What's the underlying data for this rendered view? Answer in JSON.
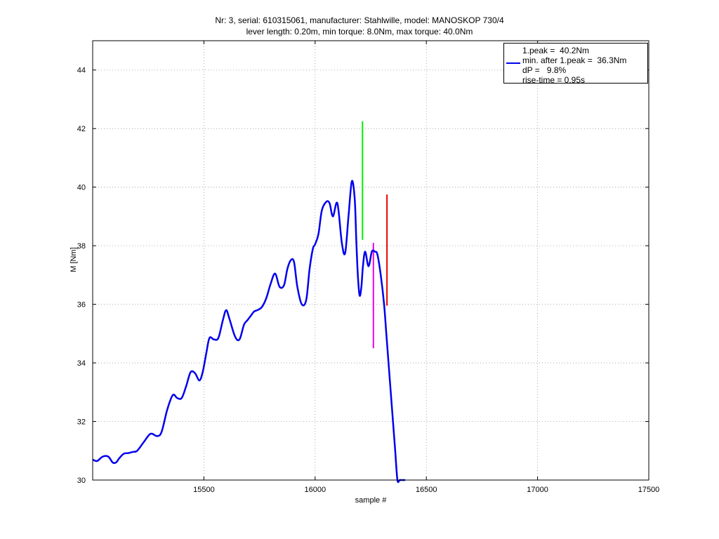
{
  "chart_data": {
    "type": "line",
    "title": "Nr: 3, serial: 610315061, manufacturer: Stahlwille, model: MANOSKOP 730/4",
    "subtitle": "lever length: 0.20m, min torque: 8.0Nm, max torque: 40.0Nm",
    "xlabel": "sample #",
    "ylabel": "M [Nm]",
    "xlim": [
      15000,
      17500
    ],
    "ylim": [
      30,
      45
    ],
    "xticks": [
      15500,
      16000,
      16500,
      17000,
      17500
    ],
    "yticks": [
      30,
      32,
      34,
      36,
      38,
      40,
      42,
      44
    ],
    "grid": true,
    "legend_position": "top-right",
    "legend_lines": [
      "1.peak =  40.2Nm",
      "min. after 1.peak =  36.3Nm",
      "dP =   9.8%",
      "rise-time = 0.95s"
    ],
    "colors": {
      "series": "#0000ee",
      "peak_marker": "#00ee00",
      "min_marker": "#ee00ee",
      "end_marker": "#ee0000",
      "grid": "#999999"
    },
    "series": [
      {
        "x": [
          15000,
          15020,
          15045,
          15070,
          15090,
          15105,
          15120,
          15140,
          15160,
          15180,
          15200,
          15230,
          15260,
          15290,
          15310,
          15335,
          15360,
          15380,
          15400,
          15420,
          15440,
          15460,
          15480,
          15495,
          15510,
          15525,
          15545,
          15565,
          15585,
          15600,
          15615,
          15640,
          15660,
          15680,
          15695,
          15710,
          15725,
          15740,
          15760,
          15780,
          15800,
          15820,
          15840,
          15860,
          15875,
          15890,
          15905,
          15920,
          15940,
          15960,
          15975,
          15990,
          16000,
          16015,
          16030,
          16050,
          16065,
          16080,
          16100,
          16120,
          16135,
          16150,
          16165,
          16178,
          16185,
          16192,
          16200,
          16208,
          16215,
          16225,
          16240,
          16255,
          16268,
          16280,
          16295,
          16310,
          16320,
          16330,
          16340,
          16350,
          16360,
          16370,
          16380,
          16390,
          16400,
          16405
        ],
        "y": [
          30.7,
          30.65,
          30.8,
          30.8,
          30.6,
          30.6,
          30.75,
          30.9,
          30.92,
          30.96,
          31.0,
          31.3,
          31.58,
          31.5,
          31.65,
          32.4,
          32.9,
          32.8,
          32.8,
          33.2,
          33.68,
          33.65,
          33.4,
          33.7,
          34.3,
          34.85,
          34.8,
          34.85,
          35.45,
          35.8,
          35.5,
          34.9,
          34.8,
          35.3,
          35.45,
          35.6,
          35.75,
          35.8,
          35.9,
          36.2,
          36.7,
          37.05,
          36.6,
          36.65,
          37.2,
          37.5,
          37.45,
          36.6,
          36.0,
          36.15,
          37.2,
          37.9,
          38.05,
          38.4,
          39.2,
          39.5,
          39.45,
          39.0,
          39.45,
          38.1,
          37.75,
          39.0,
          40.2,
          39.6,
          38.2,
          37.0,
          36.3,
          36.6,
          37.3,
          37.8,
          37.3,
          37.8,
          37.8,
          37.7,
          37.0,
          36.0,
          35.0,
          34.0,
          33.0,
          32.0,
          31.0,
          30.0,
          30.0,
          30.0,
          30.0,
          30.0
        ]
      }
    ],
    "markers": [
      {
        "color": "green",
        "x": 16213,
        "y_range": [
          38.2,
          42.25
        ]
      },
      {
        "color": "magenta",
        "x": 16262,
        "y_range": [
          34.5,
          38.1
        ]
      },
      {
        "color": "red",
        "x": 16323,
        "y_range": [
          35.95,
          39.75
        ]
      }
    ]
  }
}
